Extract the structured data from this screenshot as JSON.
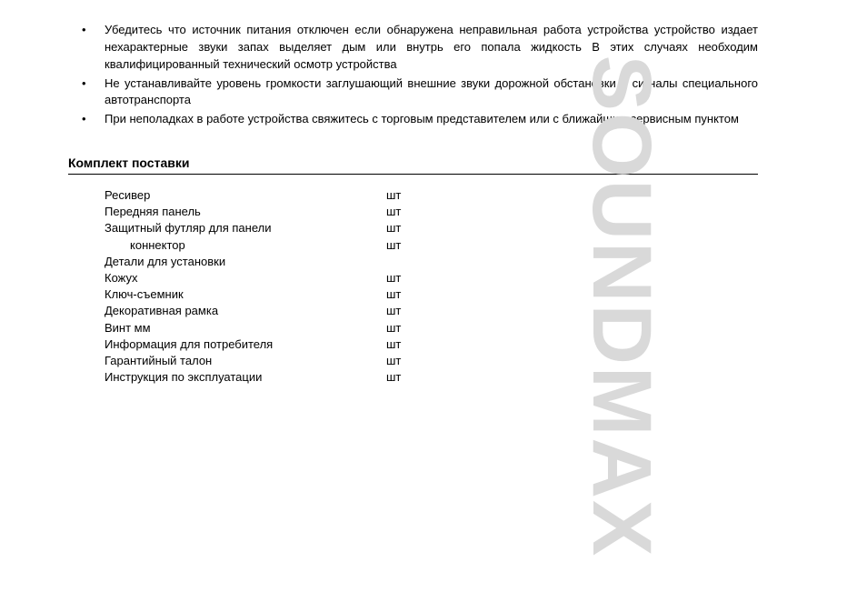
{
  "bullets": [
    "Убедитесь  что источник питания отключен  если обнаружена неправильная работа устройства  устройство издает нехарактерные звуки  запах  выделяет дым или внутрь его попала жидкость  В этих случаях необходим квалифицированный технический осмотр устройства",
    "Не устанавливайте уровень громкости  заглушающий внешние звуки дорожной обстановки и сигналы специального автотранспорта",
    "При неполадках в работе устройства свяжитесь с торговым представителем или с ближайшим сервисным пунктом"
  ],
  "section_title": "Комплект поставки",
  "contents": [
    {
      "name": "Ресивер",
      "unit": "шт",
      "indent": false
    },
    {
      "name": "Передняя панель",
      "unit": "шт",
      "indent": false
    },
    {
      "name": "Защитный футляр для панели",
      "unit": "шт",
      "indent": false
    },
    {
      "name": "коннектор",
      "unit": "шт",
      "indent": true
    },
    {
      "name": "Детали для установки",
      "unit": "",
      "indent": false
    },
    {
      "name": "Кожух",
      "unit": "шт",
      "indent": false
    },
    {
      "name": "Ключ-съемник",
      "unit": "шт",
      "indent": false
    },
    {
      "name": "Декоративная рамка",
      "unit": "шт",
      "indent": false
    },
    {
      "name": "Винт          мм",
      "unit": "шт",
      "indent": false
    },
    {
      "name": "Информация для потребителя",
      "unit": "шт",
      "indent": false
    },
    {
      "name": "Гарантийный талон",
      "unit": "шт",
      "indent": false
    },
    {
      "name": "Инструкция по эксплуатации",
      "unit": "шт",
      "indent": false
    }
  ],
  "watermark": "SOUNDMAX",
  "colors": {
    "text": "#000000",
    "background": "#ffffff",
    "watermark": "#d9d9d9",
    "rule": "#000000"
  }
}
